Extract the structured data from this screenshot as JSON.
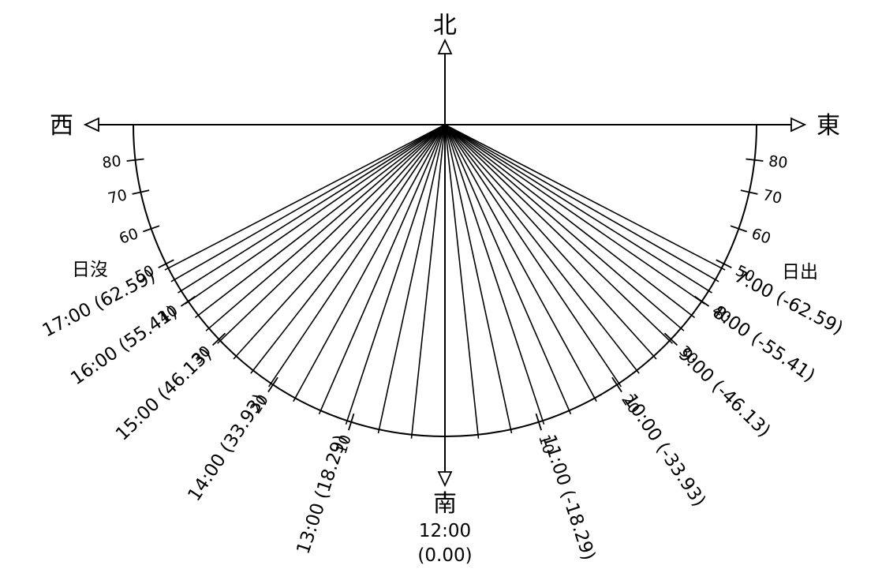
{
  "directions": {
    "north": "北",
    "south": "南",
    "east": "東",
    "west": "西"
  },
  "sunrise_label": "日出",
  "sunset_label": "日沒",
  "noon": {
    "time": "12:00",
    "angle": "(0.00)"
  },
  "morning_hours": [
    {
      "time": "7:00",
      "angle": "(-62.59)",
      "deg": -62.59
    },
    {
      "time": "8:00",
      "angle": "(-55.41)",
      "deg": -55.41
    },
    {
      "time": "9:00",
      "angle": "(-46.13)",
      "deg": -46.13
    },
    {
      "time": "10:00",
      "angle": "(-33.93)",
      "deg": -33.93
    },
    {
      "time": "11:00",
      "angle": "(-18.29)",
      "deg": -18.29
    }
  ],
  "afternoon_hours": [
    {
      "time": "17:00",
      "angle": "(62.59)",
      "deg": 62.59
    },
    {
      "time": "16:00",
      "angle": "(55.41)",
      "deg": 55.41
    },
    {
      "time": "15:00",
      "angle": "(46.13)",
      "deg": 46.13
    },
    {
      "time": "14:00",
      "angle": "(33.93)",
      "deg": 33.93
    },
    {
      "time": "13:00",
      "angle": "(18.29)",
      "deg": 18.29
    }
  ],
  "scale_ticks": [
    "10",
    "20",
    "30",
    "40",
    "50",
    "60",
    "70",
    "80"
  ],
  "tick_values": [
    10,
    20,
    30,
    40,
    50,
    60,
    70,
    80
  ]
}
